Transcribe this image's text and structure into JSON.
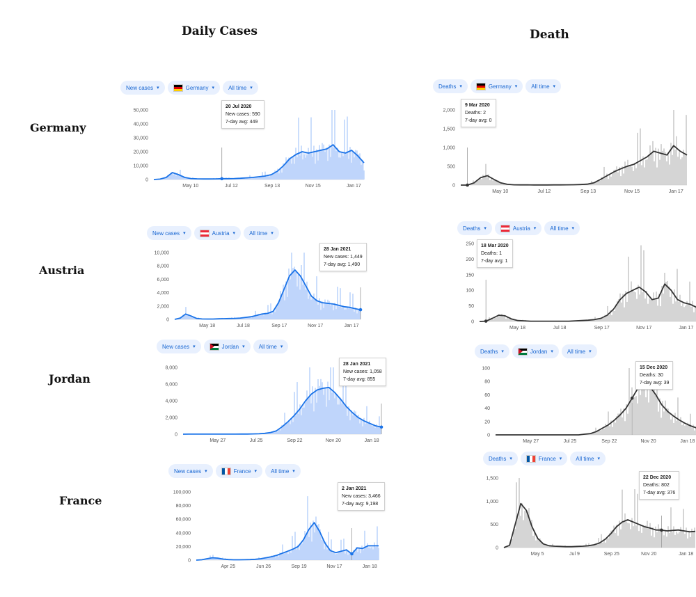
{
  "headings": {
    "cases": "Daily Cases",
    "deaths": "Death"
  },
  "rows": [
    "Germany",
    "Austria",
    "Jordan",
    "France"
  ],
  "colors": {
    "case_bar": "#a8c7fa",
    "case_line": "#1a73e8",
    "death_bar": "#b9b9b9",
    "death_line": "#333333",
    "pill_bg": "#e8f0fe",
    "pill_text": "#1967d2"
  },
  "panels": [
    {
      "kind": "cases",
      "country": "Germany",
      "pills": [
        "New cases",
        "Germany",
        "All time"
      ],
      "tooltip": {
        "date": "20 Jul 2020",
        "label1": "New cases: 590",
        "label2": "7-day avg: 449"
      },
      "chart_data": {
        "type": "line",
        "ylim": [
          0,
          50000
        ],
        "yticks": [
          "50,000",
          "40,000",
          "30,000",
          "20,000",
          "10,000",
          "0"
        ],
        "xticks": [
          "May 10",
          "Jul 12",
          "Sep 13",
          "Nov 15",
          "Jan 17"
        ],
        "series": [
          {
            "values": [
              0,
              300,
              1500,
              5000,
              3500,
              1500,
              700,
              500,
              400,
              400,
              450,
              590,
              600,
              700,
              900,
              1200,
              1500,
              2000,
              2500,
              3500,
              6000,
              10000,
              15000,
              18000,
              20000,
              19000,
              20000,
              21000,
              22000,
              25000,
              20000,
              19000,
              21000,
              17000,
              12000
            ]
          }
        ]
      }
    },
    {
      "kind": "deaths",
      "country": "Germany",
      "pills": [
        "Deaths",
        "Germany",
        "All time"
      ],
      "tooltip": {
        "date": "9 Mar 2020",
        "label1": "Deaths: 2",
        "label2": "7-day avg: 0"
      },
      "chart_data": {
        "type": "line",
        "ylim": [
          0,
          2000
        ],
        "yticks": [
          "2,000",
          "1,500",
          "1,000",
          "500",
          "0"
        ],
        "xticks": [
          "May 10",
          "Jul 12",
          "Sep 13",
          "Nov 15",
          "Jan 17"
        ],
        "series": [
          {
            "values": [
              0,
              0,
              60,
              200,
              250,
              150,
              60,
              20,
              8,
              5,
              5,
              4,
              4,
              4,
              5,
              6,
              8,
              10,
              15,
              25,
              60,
              150,
              250,
              350,
              430,
              500,
              550,
              650,
              750,
              900,
              850,
              800,
              1050,
              900,
              800
            ]
          }
        ]
      }
    },
    {
      "kind": "cases",
      "country": "Austria",
      "pills": [
        "New cases",
        "Austria",
        "All time"
      ],
      "tooltip": {
        "date": "28 Jan 2021",
        "label1": "New cases: 1,449",
        "label2": "7-day avg: 1,490"
      },
      "chart_data": {
        "type": "line",
        "ylim": [
          0,
          10000
        ],
        "yticks": [
          "10,000",
          "8,000",
          "6,000",
          "4,000",
          "2,000",
          "0"
        ],
        "xticks": [
          "May 18",
          "Jul 18",
          "Sep 17",
          "Nov 17",
          "Jan 17"
        ],
        "series": [
          {
            "values": [
              0,
              200,
              800,
              500,
              150,
              60,
              50,
              50,
              80,
              100,
              120,
              150,
              200,
              300,
              400,
              600,
              800,
              900,
              1200,
              2500,
              4500,
              6500,
              7400,
              6500,
              5000,
              3500,
              2800,
              2500,
              2400,
              2300,
              2100,
              1900,
              1800,
              1600,
              1449
            ]
          }
        ]
      }
    },
    {
      "kind": "deaths",
      "country": "Austria",
      "pills": [
        "Deaths",
        "Austria",
        "All time"
      ],
      "tooltip": {
        "date": "18 Mar 2020",
        "label1": "Deaths: 1",
        "label2": "7-day avg: 1"
      },
      "chart_data": {
        "type": "line",
        "ylim": [
          0,
          250
        ],
        "yticks": [
          "250",
          "200",
          "150",
          "100",
          "50",
          "0"
        ],
        "xticks": [
          "May 18",
          "Jul 18",
          "Sep 17",
          "Nov 17",
          "Jan 17"
        ],
        "series": [
          {
            "values": [
              0,
              1,
              10,
              20,
              18,
              8,
              3,
              2,
              1,
              1,
              1,
              1,
              1,
              1,
              1,
              2,
              3,
              4,
              6,
              10,
              20,
              40,
              70,
              90,
              100,
              110,
              95,
              70,
              75,
              120,
              100,
              70,
              60,
              55,
              45
            ]
          }
        ]
      }
    },
    {
      "kind": "cases",
      "country": "Jordan",
      "pills": [
        "New cases",
        "Jordan",
        "All time"
      ],
      "tooltip": {
        "date": "28 Jan 2021",
        "label1": "New cases: 1,058",
        "label2": "7-day avg: 855"
      },
      "chart_data": {
        "type": "line",
        "ylim": [
          0,
          8000
        ],
        "yticks": [
          "8,000",
          "6,000",
          "4,000",
          "2,000",
          "0"
        ],
        "xticks": [
          "May 27",
          "Jul 25",
          "Sep 22",
          "Nov 20",
          "Jan 18"
        ],
        "series": [
          {
            "values": [
              0,
              5,
              10,
              10,
              10,
              10,
              10,
              10,
              10,
              10,
              15,
              20,
              30,
              50,
              100,
              200,
              400,
              900,
              1500,
              2200,
              3000,
              4000,
              4800,
              5300,
              5500,
              5600,
              5000,
              4200,
              3300,
              2600,
              2000,
              1600,
              1300,
              1000,
              855
            ]
          }
        ]
      }
    },
    {
      "kind": "deaths",
      "country": "Jordan",
      "pills": [
        "Deaths",
        "Jordan",
        "All time"
      ],
      "tooltip": {
        "date": "15 Dec 2020",
        "label1": "Deaths: 30",
        "label2": "7-day avg: 39"
      },
      "chart_data": {
        "type": "line",
        "ylim": [
          0,
          100
        ],
        "yticks": [
          "100",
          "80",
          "60",
          "40",
          "20",
          "0"
        ],
        "xticks": [
          "May 27",
          "Jul 25",
          "Sep 22",
          "Nov 20",
          "Jan 18"
        ],
        "series": [
          {
            "values": [
              0,
              0,
              0,
              0,
              0,
              0,
              0,
              0,
              0,
              0,
              0,
              0,
              0,
              0,
              0,
              1,
              2,
              5,
              10,
              15,
              22,
              30,
              40,
              55,
              70,
              78,
              72,
              60,
              45,
              35,
              28,
              22,
              17,
              13,
              10
            ]
          }
        ]
      }
    },
    {
      "kind": "cases",
      "country": "France",
      "pills": [
        "New cases",
        "France",
        "All time"
      ],
      "tooltip": {
        "date": "2 Jan 2021",
        "label1": "New cases: 3,466",
        "label2": "7-day avg: 9,198"
      },
      "chart_data": {
        "type": "line",
        "ylim": [
          0,
          100000
        ],
        "yticks": [
          "100,000",
          "80,000",
          "60,000",
          "40,000",
          "20,000",
          "0"
        ],
        "xticks": [
          "Apr 25",
          "Jun 26",
          "Sep 19",
          "Nov 17",
          "Jan 18"
        ],
        "series": [
          {
            "values": [
              0,
              500,
              2000,
              3500,
              3000,
              1500,
              800,
              500,
              500,
              600,
              800,
              1200,
              2000,
              3500,
              5000,
              7000,
              10000,
              13000,
              16000,
              20000,
              30000,
              45000,
              55000,
              42000,
              25000,
              14000,
              11000,
              13000,
              15000,
              9198,
              18000,
              17000,
              21000,
              21000,
              21000
            ]
          }
        ]
      }
    },
    {
      "kind": "deaths",
      "country": "France",
      "pills": [
        "Deaths",
        "France",
        "All time"
      ],
      "tooltip": {
        "date": "22 Dec 2020",
        "label1": "Deaths: 802",
        "label2": "7-day avg: 376"
      },
      "chart_data": {
        "type": "line",
        "ylim": [
          0,
          1500
        ],
        "yticks": [
          "1,500",
          "1,000",
          "500",
          "0"
        ],
        "xticks": [
          "May 5",
          "Jul 9",
          "Sep 25",
          "Nov 20",
          "Jan 18"
        ],
        "series": [
          {
            "values": [
              0,
              50,
              500,
              950,
              800,
              450,
              200,
              80,
              40,
              30,
              25,
              20,
              20,
              25,
              30,
              40,
              60,
              100,
              180,
              300,
              450,
              550,
              600,
              550,
              500,
              450,
              420,
              380,
              376,
              360,
              370,
              380,
              360,
              340,
              350
            ]
          }
        ]
      }
    }
  ]
}
